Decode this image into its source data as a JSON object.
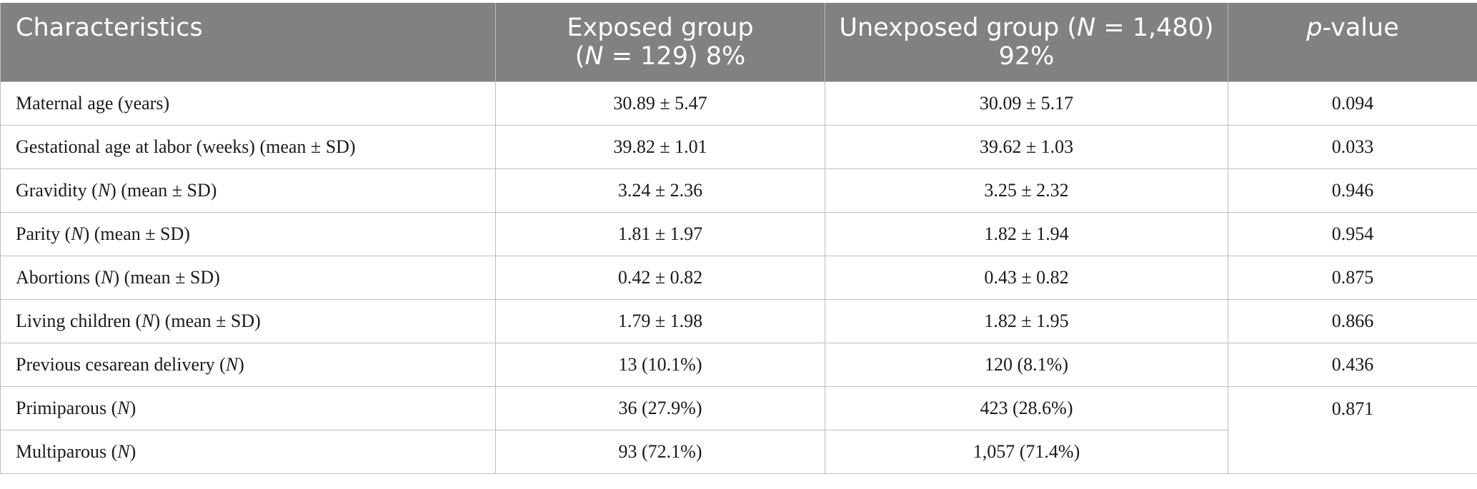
{
  "header": {
    "col1": "Characteristics",
    "col2_line1": "Exposed group",
    "col2_line2_prefix": "(",
    "col2_line2_var": "N",
    "col2_line2_suffix": " = 129) 8%",
    "col3_line1_prefix": "Unexposed group (",
    "col3_line1_var": "N",
    "col3_line1_suffix": " = 1,480)",
    "col3_line2": "92%",
    "col4_var": "p",
    "col4_suffix": "-value"
  },
  "rows": [
    {
      "pre": "Maternal age (years)",
      "var": "",
      "post": "",
      "exposed": "30.89 ± 5.47",
      "unexposed": "30.09 ± 5.17",
      "p": "0.094"
    },
    {
      "pre": "Gestational age at labor (weeks) (mean ± SD)",
      "var": "",
      "post": "",
      "exposed": "39.82 ± 1.01",
      "unexposed": "39.62 ± 1.03",
      "p": "0.033"
    },
    {
      "pre": "Gravidity (",
      "var": "N",
      "post": ") (mean ± SD)",
      "exposed": "3.24 ± 2.36",
      "unexposed": "3.25 ± 2.32",
      "p": "0.946"
    },
    {
      "pre": "Parity (",
      "var": "N",
      "post": ") (mean ± SD)",
      "exposed": "1.81 ± 1.97",
      "unexposed": "1.82 ± 1.94",
      "p": "0.954"
    },
    {
      "pre": "Abortions (",
      "var": "N",
      "post": ") (mean ± SD)",
      "exposed": "0.42 ± 0.82",
      "unexposed": "0.43 ± 0.82",
      "p": "0.875"
    },
    {
      "pre": "Living children (",
      "var": "N",
      "post": ") (mean ± SD)",
      "exposed": "1.79 ± 1.98",
      "unexposed": "1.82 ± 1.95",
      "p": "0.866"
    },
    {
      "pre": "Previous cesarean delivery (",
      "var": "N",
      "post": ")",
      "exposed": "13 (10.1%)",
      "unexposed": "120 (8.1%)",
      "p": "0.436"
    },
    {
      "pre": "Primiparous (",
      "var": "N",
      "post": ")",
      "exposed": "36 (27.9%)",
      "unexposed": "423 (28.6%)",
      "p": "0.871"
    },
    {
      "pre": "Multiparous (",
      "var": "N",
      "post": ")",
      "exposed": "93 (72.1%)",
      "unexposed": "1,057 (71.4%)",
      "p": ""
    }
  ]
}
